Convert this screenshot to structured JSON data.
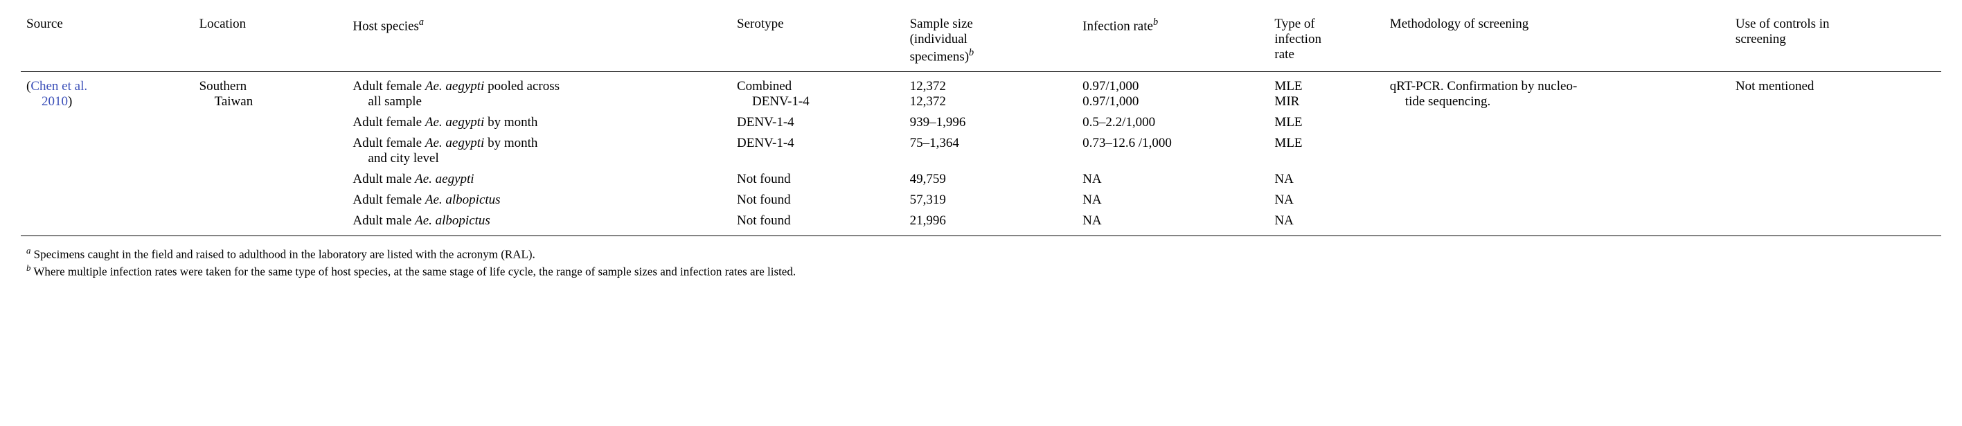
{
  "headers": {
    "source": "Source",
    "location": "Location",
    "host": "Host species",
    "host_sup": "a",
    "serotype": "Serotype",
    "sample_l1": "Sample size",
    "sample_l2": "(individual",
    "sample_l3": "specimens)",
    "sample_sup": "b",
    "infrate": "Infection rate",
    "infrate_sup": "b",
    "typeinf_l1": "Type of",
    "typeinf_l2": "infection",
    "typeinf_l3": "rate",
    "method": "Methodology of screening",
    "controls_l1": "Use of controls in",
    "controls_l2": "screening"
  },
  "body": {
    "source_l1a": "(",
    "source_l1b": "Chen et al.",
    "source_l2": "2010",
    "source_l2b": ")",
    "loc_l1": "Southern",
    "loc_l2": "Taiwan",
    "meth_l1": "qRT-PCR. Confirmation by nucleo-",
    "meth_l2": "tide sequencing.",
    "ctrl": "Not mentioned"
  },
  "rows": [
    {
      "host_pre": "Adult female ",
      "host_it": "Ae. aegypti",
      "host_post": " pooled across",
      "host_l2": "all sample",
      "sero_l1": "Combined",
      "sero_l2": "DENV-1-4",
      "samp_l1": "12,372",
      "samp_l2": "12,372",
      "inf_l1": "0.97/1,000",
      "inf_l2": "0.97/1,000",
      "type_l1": "MLE",
      "type_l2": "MIR"
    },
    {
      "host_pre": "Adult female ",
      "host_it": "Ae. aegypti",
      "host_post": " by month",
      "host_l2": "",
      "sero_l1": "DENV-1-4",
      "samp_l1": "939–1,996",
      "inf_l1": "0.5–2.2/1,000",
      "type_l1": "MLE"
    },
    {
      "host_pre": "Adult female ",
      "host_it": "Ae. aegypti",
      "host_post": " by month",
      "host_l2": "and city level",
      "sero_l1": "DENV-1-4",
      "samp_l1": "75–1,364",
      "inf_l1": "0.73–12.6 /1,000",
      "type_l1": "MLE"
    },
    {
      "host_pre": "Adult male ",
      "host_it": "Ae. aegypti",
      "host_post": "",
      "host_l2": "",
      "sero_l1": "Not found",
      "samp_l1": "49,759",
      "inf_l1": "NA",
      "type_l1": "NA"
    },
    {
      "host_pre": "Adult female ",
      "host_it": "Ae. albopictus",
      "host_post": "",
      "host_l2": "",
      "sero_l1": "Not found",
      "samp_l1": "57,319",
      "inf_l1": "NA",
      "type_l1": "NA"
    },
    {
      "host_pre": "Adult male ",
      "host_it": "Ae. albopictus",
      "host_post": "",
      "host_l2": "",
      "sero_l1": "Not found",
      "samp_l1": "21,996",
      "inf_l1": "NA",
      "type_l1": "NA"
    }
  ],
  "footnotes": {
    "a_sup": "a",
    "a_text": " Specimens caught in the field and raised to adulthood in the laboratory are listed with the acronym (RAL).",
    "b_sup": "b",
    "b_text": " Where multiple infection rates were taken for the same type of host species, at the same stage of life cycle, the range of sample sizes and infection rates are listed."
  }
}
